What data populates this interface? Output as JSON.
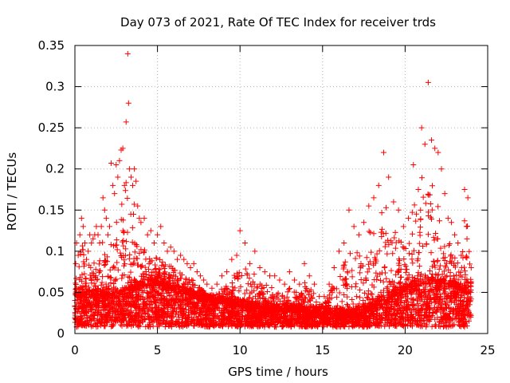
{
  "chart_data": {
    "type": "scatter",
    "title": "Day 073 of 2021, Rate Of TEC Index for receiver trds",
    "xlabel": "GPS time / hours",
    "ylabel": "ROTI / TECUs",
    "xlim": [
      0,
      25
    ],
    "ylim": [
      0,
      0.35
    ],
    "x_ticks": [
      "0",
      "5",
      "10",
      "15",
      "20",
      "25"
    ],
    "y_ticks": [
      "0",
      "0.05",
      "0.1",
      "0.15",
      "0.2",
      "0.25",
      "0.3",
      "0.35"
    ],
    "grid": true,
    "marker": "+",
    "point_color": "#ff0000",
    "series": [
      {
        "x": [
          0.05,
          0.1,
          0.2,
          0.3,
          0.4,
          0.5,
          0.6,
          0.7,
          0.8,
          0.9,
          1.0,
          1.1,
          1.2,
          1.3,
          1.4,
          1.5,
          1.6,
          1.7,
          1.8,
          1.9,
          2.0,
          2.1,
          2.2,
          2.3,
          2.4,
          2.5,
          2.6,
          2.7,
          2.8,
          2.9,
          3.0,
          3.1,
          3.2,
          3.25,
          3.3,
          3.4,
          3.5,
          3.6,
          3.7,
          3.8,
          3.9,
          4.0,
          4.2,
          4.4,
          4.6,
          4.8,
          5.0,
          5.2,
          5.4,
          5.6,
          5.8,
          6.0,
          6.2,
          6.4,
          6.6,
          6.8,
          7.0,
          7.2,
          7.4,
          7.6,
          7.8,
          8.0,
          8.3,
          8.6,
          8.9,
          9.2,
          9.5,
          9.8,
          10.0,
          10.3,
          10.6,
          10.9,
          11.2,
          11.5,
          11.8,
          12.1,
          12.4,
          12.7,
          13.0,
          13.3,
          13.6,
          13.9,
          14.2,
          14.5,
          14.8,
          15.1,
          15.4,
          15.7,
          16.0,
          16.3,
          16.6,
          16.9,
          17.2,
          17.5,
          17.8,
          18.1,
          18.4,
          18.7,
          19.0,
          19.3,
          19.6,
          19.9,
          20.2,
          20.5,
          20.8,
          21.0,
          21.2,
          21.4,
          21.6,
          21.8,
          22.0,
          22.2,
          22.4,
          22.6,
          22.8,
          23.0,
          23.2,
          23.4,
          23.6,
          23.8,
          24.0
        ],
        "y": [
          0.085,
          0.11,
          0.095,
          0.12,
          0.14,
          0.13,
          0.11,
          0.09,
          0.1,
          0.12,
          0.11,
          0.115,
          0.12,
          0.13,
          0.12,
          0.11,
          0.13,
          0.165,
          0.15,
          0.14,
          0.12,
          0.13,
          0.207,
          0.18,
          0.17,
          0.205,
          0.19,
          0.21,
          0.223,
          0.225,
          0.18,
          0.257,
          0.34,
          0.28,
          0.2,
          0.19,
          0.18,
          0.2,
          0.185,
          0.155,
          0.14,
          0.135,
          0.14,
          0.12,
          0.125,
          0.11,
          0.12,
          0.13,
          0.11,
          0.1,
          0.105,
          0.1,
          0.09,
          0.095,
          0.09,
          0.085,
          0.08,
          0.085,
          0.075,
          0.07,
          0.065,
          0.06,
          0.055,
          0.06,
          0.07,
          0.075,
          0.09,
          0.095,
          0.125,
          0.11,
          0.085,
          0.1,
          0.08,
          0.075,
          0.07,
          0.07,
          0.065,
          0.06,
          0.075,
          0.065,
          0.06,
          0.085,
          0.07,
          0.06,
          0.045,
          0.045,
          0.06,
          0.08,
          0.1,
          0.11,
          0.15,
          0.13,
          0.12,
          0.135,
          0.155,
          0.165,
          0.18,
          0.22,
          0.19,
          0.16,
          0.15,
          0.13,
          0.14,
          0.205,
          0.175,
          0.25,
          0.23,
          0.305,
          0.235,
          0.225,
          0.22,
          0.2,
          0.17,
          0.14,
          0.135,
          0.12,
          0.11,
          0.095,
          0.175,
          0.165,
          0.08
        ]
      }
    ],
    "baseline_y": [
      0.045,
      0.048,
      0.045,
      0.047,
      0.046,
      0.045,
      0.047,
      0.05,
      0.055,
      0.06,
      0.06,
      0.058,
      0.055,
      0.05,
      0.048,
      0.045,
      0.042,
      0.04,
      0.038,
      0.036,
      0.035,
      0.033,
      0.032,
      0.03,
      0.03,
      0.028,
      0.028,
      0.027,
      0.027,
      0.026,
      0.025,
      0.024,
      0.024,
      0.023,
      0.022,
      0.022,
      0.024,
      0.028,
      0.034,
      0.04,
      0.045,
      0.05,
      0.055,
      0.058,
      0.06,
      0.062,
      0.06,
      0.058,
      0.055,
      0.052,
      0.05
    ]
  }
}
